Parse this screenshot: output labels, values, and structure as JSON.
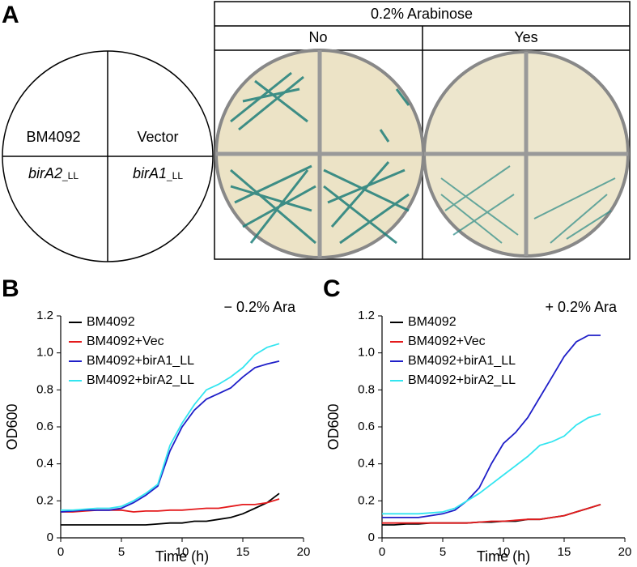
{
  "panel_a": {
    "panel_label": "A",
    "diagram": {
      "top_left": "BM4092",
      "top_right": "Vector",
      "bottom_left": {
        "gene": "birA2",
        "suffix": "_LL"
      },
      "bottom_right": {
        "gene": "birA1",
        "suffix": "_LL"
      }
    },
    "header": "0.2% Arabinose",
    "columns": [
      "No",
      "Yes"
    ]
  },
  "chart_data": [
    {
      "type": "line",
      "panel_label": "B",
      "annotation": "− 0.2% Ara",
      "x_label": "Time (h)",
      "y_label": "OD600",
      "xlim": [
        0,
        20
      ],
      "xticks": [
        0,
        5,
        10,
        15,
        20
      ],
      "ylim": [
        0,
        1.2
      ],
      "yticks": [
        0,
        0.2,
        0.4,
        0.6,
        0.8,
        {
          "value": 1,
          "label": "1.0"
        },
        1.2
      ],
      "x": [
        0,
        1,
        2,
        3,
        4,
        5,
        6,
        7,
        8,
        9,
        10,
        11,
        12,
        13,
        14,
        15,
        16,
        17,
        18
      ],
      "series": [
        {
          "name": "BM4092",
          "color": "#000000",
          "values": [
            0.07,
            0.07,
            0.07,
            0.07,
            0.07,
            0.07,
            0.07,
            0.07,
            0.075,
            0.08,
            0.08,
            0.09,
            0.09,
            0.1,
            0.11,
            0.13,
            0.16,
            0.19,
            0.24
          ]
        },
        {
          "name": "BM4092+Vec",
          "color": "#e41a1c",
          "values": [
            0.14,
            0.14,
            0.145,
            0.15,
            0.15,
            0.15,
            0.14,
            0.145,
            0.145,
            0.15,
            0.15,
            0.155,
            0.16,
            0.16,
            0.17,
            0.18,
            0.18,
            0.19,
            0.21
          ]
        },
        {
          "name": "BM4092+birA1_LL",
          "color": "#1f1fc8",
          "values": [
            0.14,
            0.145,
            0.15,
            0.15,
            0.15,
            0.16,
            0.19,
            0.23,
            0.28,
            0.47,
            0.6,
            0.69,
            0.75,
            0.78,
            0.81,
            0.87,
            0.92,
            0.94,
            0.955
          ]
        },
        {
          "name": "BM4092+birA2_LL",
          "color": "#33e5f0",
          "values": [
            0.15,
            0.15,
            0.155,
            0.16,
            0.16,
            0.17,
            0.2,
            0.24,
            0.29,
            0.5,
            0.62,
            0.72,
            0.8,
            0.83,
            0.87,
            0.92,
            0.99,
            1.03,
            1.05
          ]
        }
      ]
    },
    {
      "type": "line",
      "panel_label": "C",
      "annotation": "+ 0.2% Ara",
      "x_label": "Time (h)",
      "y_label": "OD600",
      "xlim": [
        0,
        20
      ],
      "xticks": [
        0,
        5,
        10,
        15,
        20
      ],
      "ylim": [
        0,
        1.2
      ],
      "yticks": [
        0,
        0.2,
        0.4,
        0.6,
        0.8,
        {
          "value": 1,
          "label": "1.0"
        },
        1.2
      ],
      "x": [
        0,
        1,
        2,
        3,
        4,
        5,
        6,
        7,
        8,
        9,
        10,
        11,
        12,
        13,
        14,
        15,
        16,
        17,
        18
      ],
      "series": [
        {
          "name": "BM4092",
          "color": "#000000",
          "values": [
            0.07,
            0.07,
            0.075,
            0.075,
            0.08,
            0.08,
            0.08,
            0.08,
            0.085,
            0.085,
            0.09,
            0.09,
            0.1,
            0.1,
            0.11,
            0.12,
            0.14,
            0.16,
            0.18
          ]
        },
        {
          "name": "BM4092+Vec",
          "color": "#e41a1c",
          "values": [
            0.08,
            0.08,
            0.08,
            0.08,
            0.08,
            0.08,
            0.08,
            0.08,
            0.085,
            0.09,
            0.09,
            0.095,
            0.1,
            0.1,
            0.11,
            0.12,
            0.14,
            0.16,
            0.18
          ]
        },
        {
          "name": "BM4092+birA1_LL",
          "color": "#1f1fc8",
          "values": [
            0.11,
            0.11,
            0.11,
            0.11,
            0.12,
            0.13,
            0.15,
            0.2,
            0.27,
            0.4,
            0.51,
            0.57,
            0.65,
            0.76,
            0.87,
            0.98,
            1.06,
            1.095,
            1.095
          ]
        },
        {
          "name": "BM4092+birA2_LL",
          "color": "#33e5f0",
          "values": [
            0.13,
            0.13,
            0.13,
            0.13,
            0.135,
            0.14,
            0.16,
            0.2,
            0.24,
            0.29,
            0.34,
            0.39,
            0.44,
            0.5,
            0.52,
            0.55,
            0.61,
            0.65,
            0.67
          ]
        }
      ]
    }
  ]
}
